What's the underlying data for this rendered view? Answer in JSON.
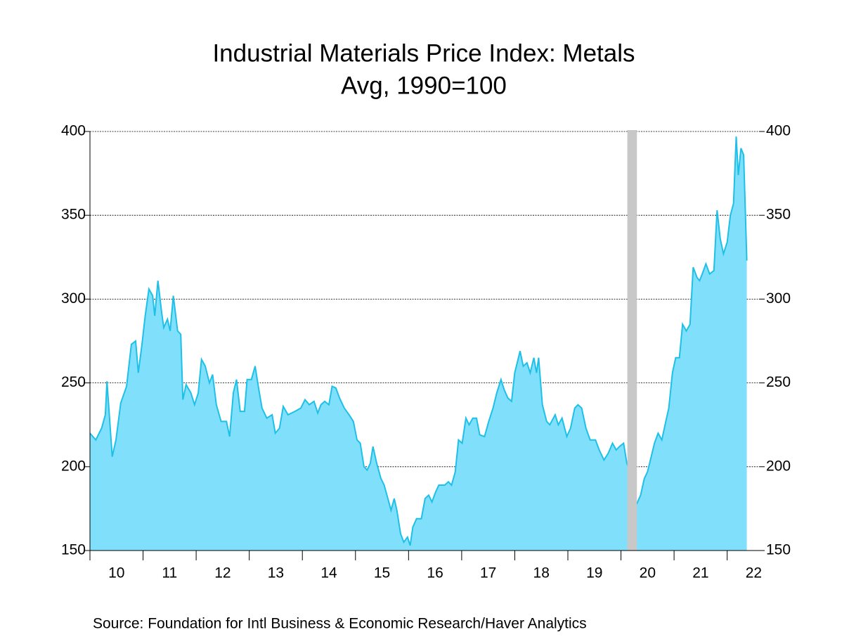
{
  "chart_data": {
    "type": "area",
    "title": "Industrial Materials Price Index: Metals",
    "subtitle": "Avg, 1990=100",
    "source": "Source:  Foundation for Intl Business & Economic Research/Haver Analytics",
    "color": "#1ec0e8",
    "fill": "#80e0fb",
    "shading_color": "#c8c8c8",
    "grid": true,
    "shading": [
      [
        2020.12,
        2020.3
      ]
    ],
    "xlim": [
      2010,
      2022.6
    ],
    "xticks": [
      {
        "value": 2010,
        "label": "10"
      },
      {
        "value": 2011,
        "label": "11"
      },
      {
        "value": 2012,
        "label": "12"
      },
      {
        "value": 2013,
        "label": "13"
      },
      {
        "value": 2014,
        "label": "14"
      },
      {
        "value": 2015,
        "label": "15"
      },
      {
        "value": 2016,
        "label": "16"
      },
      {
        "value": 2017,
        "label": "17"
      },
      {
        "value": 2018,
        "label": "18"
      },
      {
        "value": 2019,
        "label": "19"
      },
      {
        "value": 2020,
        "label": "20"
      },
      {
        "value": 2021,
        "label": "21"
      },
      {
        "value": 2022,
        "label": "22"
      }
    ],
    "ylim": [
      150,
      400
    ],
    "yticks": [
      150,
      200,
      250,
      300,
      350,
      400
    ],
    "x": [
      2010.0,
      2010.11,
      2010.22,
      2010.29,
      2010.32,
      2010.42,
      2010.49,
      2010.58,
      2010.69,
      2010.78,
      2010.86,
      2010.91,
      2010.98,
      2011.04,
      2011.11,
      2011.18,
      2011.22,
      2011.28,
      2011.35,
      2011.39,
      2011.46,
      2011.51,
      2011.57,
      2011.65,
      2011.71,
      2011.75,
      2011.81,
      2011.9,
      2011.97,
      2012.04,
      2012.1,
      2012.17,
      2012.25,
      2012.31,
      2012.38,
      2012.47,
      2012.57,
      2012.63,
      2012.7,
      2012.76,
      2012.83,
      2012.91,
      2012.96,
      2013.04,
      2013.11,
      2013.17,
      2013.24,
      2013.33,
      2013.43,
      2013.49,
      2013.57,
      2013.64,
      2013.73,
      2013.86,
      2013.97,
      2014.05,
      2014.13,
      2014.22,
      2014.29,
      2014.35,
      2014.42,
      2014.5,
      2014.56,
      2014.63,
      2014.7,
      2014.79,
      2014.88,
      2014.96,
      2015.03,
      2015.09,
      2015.16,
      2015.22,
      2015.28,
      2015.33,
      2015.4,
      2015.48,
      2015.54,
      2015.61,
      2015.67,
      2015.73,
      2015.78,
      2015.85,
      2015.91,
      2015.98,
      2016.03,
      2016.08,
      2016.15,
      2016.24,
      2016.31,
      2016.38,
      2016.44,
      2016.51,
      2016.57,
      2016.68,
      2016.75,
      2016.81,
      2016.88,
      2016.94,
      2017.01,
      2017.08,
      2017.14,
      2017.21,
      2017.28,
      2017.34,
      2017.43,
      2017.51,
      2017.59,
      2017.66,
      2017.74,
      2017.8,
      2017.87,
      2017.94,
      2018.0,
      2018.1,
      2018.16,
      2018.23,
      2018.29,
      2018.36,
      2018.41,
      2018.45,
      2018.52,
      2018.6,
      2018.66,
      2018.76,
      2018.82,
      2018.89,
      2018.98,
      2019.05,
      2019.13,
      2019.19,
      2019.26,
      2019.34,
      2019.42,
      2019.52,
      2019.59,
      2019.68,
      2019.76,
      2019.84,
      2019.91,
      2019.97,
      2020.05,
      2020.11,
      2020.17,
      2020.21,
      2020.25,
      2020.3,
      2020.37,
      2020.44,
      2020.5,
      2020.57,
      2020.63,
      2020.7,
      2020.77,
      2020.83,
      2020.9,
      2020.97,
      2021.03,
      2021.1,
      2021.16,
      2021.23,
      2021.3,
      2021.36,
      2021.43,
      2021.48,
      2021.53,
      2021.6,
      2021.67,
      2021.75,
      2021.81,
      2021.87,
      2021.93,
      2022.0,
      2022.06,
      2022.12,
      2022.17,
      2022.21,
      2022.26,
      2022.31,
      2022.37
    ],
    "values": [
      220,
      216,
      223,
      231,
      251,
      206,
      216,
      238,
      248,
      273,
      275,
      256,
      273,
      290,
      306,
      302,
      290,
      311,
      292,
      283,
      288,
      281,
      302,
      281,
      279,
      240,
      249,
      244,
      237,
      244,
      264,
      260,
      250,
      255,
      237,
      227,
      227,
      218,
      244,
      252,
      233,
      233,
      252,
      252,
      260,
      248,
      235,
      229,
      231,
      220,
      223,
      236,
      231,
      233,
      235,
      240,
      237,
      239,
      232,
      237,
      239,
      237,
      248,
      247,
      241,
      235,
      231,
      227,
      216,
      214,
      200,
      198,
      202,
      212,
      202,
      193,
      189,
      181,
      174,
      181,
      174,
      160,
      155,
      158,
      153,
      164,
      169,
      169,
      181,
      183,
      179,
      185,
      189,
      189,
      191,
      189,
      197,
      216,
      214,
      229,
      225,
      229,
      229,
      219,
      218,
      227,
      235,
      244,
      252,
      246,
      241,
      239,
      256,
      269,
      260,
      262,
      256,
      265,
      256,
      265,
      237,
      227,
      225,
      231,
      225,
      229,
      218,
      223,
      235,
      237,
      235,
      223,
      216,
      216,
      210,
      204,
      208,
      214,
      210,
      212,
      214,
      202,
      198,
      189,
      176,
      178,
      183,
      193,
      197,
      206,
      214,
      220,
      216,
      225,
      235,
      256,
      265,
      265,
      285,
      281,
      285,
      319,
      313,
      311,
      315,
      321,
      315,
      317,
      353,
      336,
      327,
      334,
      350,
      357,
      397,
      374,
      390,
      386,
      323
    ]
  }
}
